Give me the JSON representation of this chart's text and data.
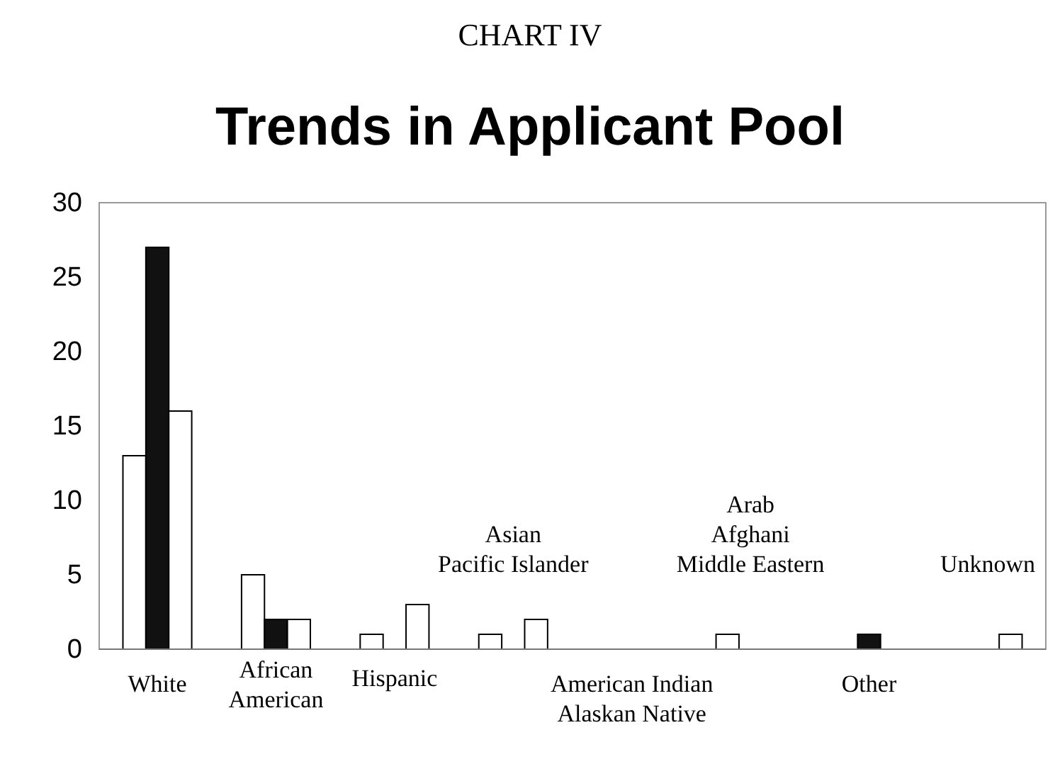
{
  "chart_data": {
    "type": "bar",
    "title": "CHART IV",
    "subtitle": "Trends in Applicant Pool",
    "categories": [
      "White",
      "African\nAmerican",
      "Hispanic",
      "Asian\nPacific Islander",
      "American Indian\nAlaskan Native",
      "Arab\nAfghani\nMiddle Eastern",
      "Other",
      "Unknown"
    ],
    "series": [
      {
        "color": "#ffffff",
        "values": [
          13,
          5,
          1,
          1,
          0,
          1,
          0,
          0
        ]
      },
      {
        "color": "#111111",
        "values": [
          27,
          2,
          0,
          0,
          0,
          0,
          1,
          0
        ]
      },
      {
        "color": "#ffffff",
        "values": [
          16,
          2,
          3,
          2,
          0,
          0,
          0,
          1
        ]
      }
    ],
    "ylim": [
      0,
      30
    ],
    "yticks": [
      0,
      5,
      10,
      15,
      20,
      25,
      30
    ],
    "grid": false
  }
}
